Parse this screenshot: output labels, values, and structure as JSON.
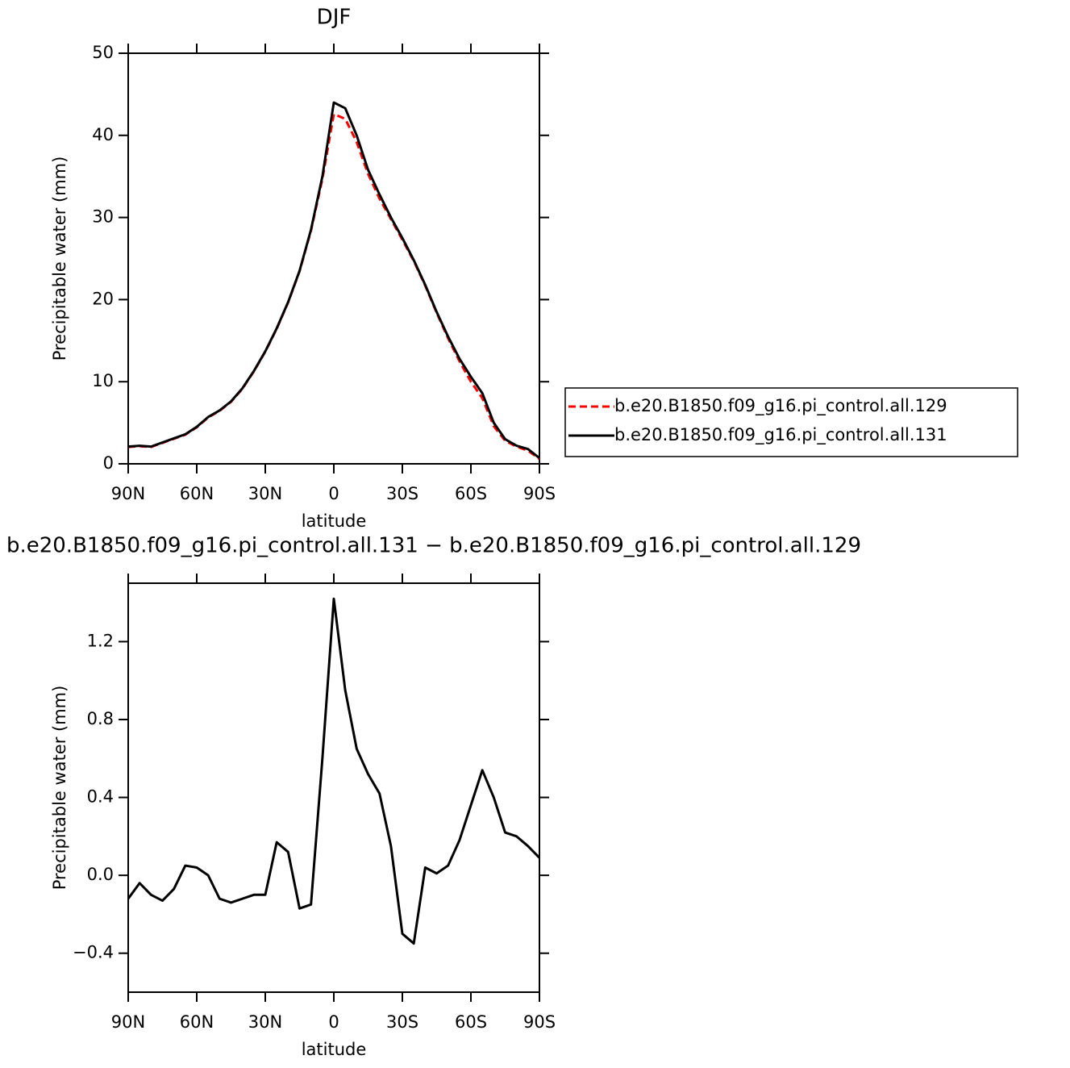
{
  "chart_data": [
    {
      "type": "line",
      "title": "DJF",
      "xlabel": "latitude",
      "ylabel": "Precipitable water (mm)",
      "x": [
        90,
        85,
        80,
        75,
        70,
        65,
        60,
        55,
        50,
        45,
        40,
        35,
        30,
        25,
        20,
        15,
        10,
        5,
        0,
        -5,
        -10,
        -15,
        -20,
        -25,
        -30,
        -35,
        -40,
        -45,
        -50,
        -55,
        -60,
        -65,
        -70,
        -75,
        -80,
        -85,
        -90
      ],
      "xlim": [
        90,
        -90
      ],
      "xticks": [
        {
          "value": 90,
          "label": "90N"
        },
        {
          "value": 60,
          "label": "60N"
        },
        {
          "value": 30,
          "label": "30N"
        },
        0,
        {
          "value": -30,
          "label": "30S"
        },
        {
          "value": -60,
          "label": "60S"
        },
        {
          "value": -90,
          "label": "90S"
        }
      ],
      "ylim": [
        0,
        50
      ],
      "yticks": [
        0,
        10,
        20,
        30,
        40,
        50
      ],
      "legend": "right",
      "series": [
        {
          "name": "b.e20.B1850.f09_g16.pi_control.all.129",
          "color": "#ff0000",
          "dash": true,
          "values": [
            2.05,
            2.15,
            2.05,
            2.55,
            3.05,
            3.55,
            4.45,
            5.65,
            6.45,
            7.55,
            9.15,
            11.25,
            13.65,
            16.45,
            19.65,
            23.45,
            28.4,
            34.7,
            42.6,
            42.0,
            39.2,
            35.3,
            32.3,
            29.8,
            27.3,
            24.7,
            21.7,
            18.4,
            15.3,
            12.5,
            10.0,
            8.0,
            4.6,
            2.8,
            2.1,
            1.6,
            0.6
          ]
        },
        {
          "name": "b.e20.B1850.f09_g16.pi_control.all.131",
          "color": "#000000",
          "dash": false,
          "values": [
            2.1,
            2.2,
            2.1,
            2.6,
            3.1,
            3.6,
            4.5,
            5.7,
            6.5,
            7.6,
            9.2,
            11.3,
            13.7,
            16.5,
            19.7,
            23.5,
            28.5,
            35.0,
            44.0,
            43.3,
            40.0,
            35.8,
            32.8,
            30.0,
            27.5,
            24.8,
            21.8,
            18.5,
            15.5,
            12.8,
            10.6,
            8.6,
            5.0,
            3.0,
            2.2,
            1.8,
            0.7
          ]
        }
      ]
    },
    {
      "type": "line",
      "title": "b.e20.B1850.f09_g16.pi_control.all.131 − b.e20.B1850.f09_g16.pi_control.all.129",
      "xlabel": "latitude",
      "ylabel": "Precipitable water (mm)",
      "x": [
        90,
        85,
        80,
        75,
        70,
        65,
        60,
        55,
        50,
        45,
        40,
        35,
        30,
        25,
        20,
        15,
        10,
        5,
        0,
        -5,
        -10,
        -15,
        -20,
        -25,
        -30,
        -35,
        -40,
        -45,
        -50,
        -55,
        -60,
        -65,
        -70,
        -75,
        -80,
        -85,
        -90
      ],
      "xlim": [
        90,
        -90
      ],
      "xticks": [
        {
          "value": 90,
          "label": "90N"
        },
        {
          "value": 60,
          "label": "60N"
        },
        {
          "value": 30,
          "label": "30N"
        },
        0,
        {
          "value": -30,
          "label": "30S"
        },
        {
          "value": -60,
          "label": "60S"
        },
        {
          "value": -90,
          "label": "90S"
        }
      ],
      "ylim": [
        -0.6,
        1.5
      ],
      "yticks": [
        {
          "value": -0.4,
          "label": "−0.4"
        },
        {
          "value": 0,
          "label": "0.0"
        },
        0.4,
        0.8,
        1.2
      ],
      "series": [
        {
          "color": "#000000",
          "dash": false,
          "values": [
            -0.12,
            -0.04,
            -0.1,
            -0.13,
            -0.07,
            0.05,
            0.04,
            0.0,
            -0.12,
            -0.14,
            -0.12,
            -0.1,
            -0.1,
            0.17,
            0.12,
            -0.17,
            -0.15,
            0.6,
            1.42,
            0.95,
            0.65,
            0.52,
            0.42,
            0.15,
            -0.3,
            -0.35,
            0.04,
            0.01,
            0.05,
            0.18,
            0.36,
            0.54,
            0.4,
            0.22,
            0.2,
            0.15,
            0.09
          ]
        }
      ]
    }
  ]
}
